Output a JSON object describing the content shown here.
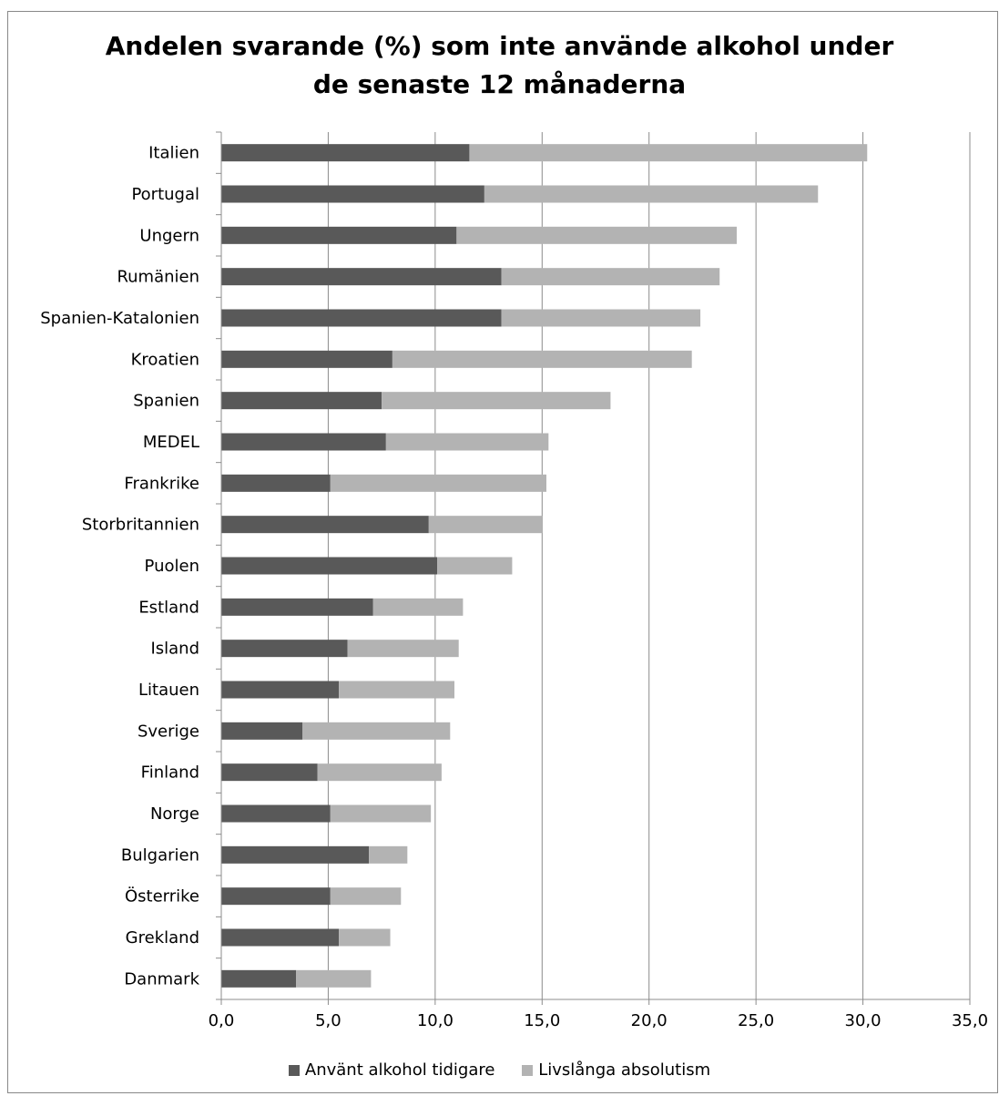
{
  "chart_data": {
    "type": "bar",
    "orientation": "horizontal",
    "stacked": true,
    "title": "Andelen svarande (%) som inte använde alkohol under de senaste 12 månaderna",
    "title_lines": [
      "Andelen svarande (%) som inte använde alkohol under",
      "de senaste 12 månaderna"
    ],
    "categories": [
      "Italien",
      "Portugal",
      "Ungern",
      "Rumänien",
      "Spanien-Katalonien",
      "Kroatien",
      "Spanien",
      "MEDEL",
      "Frankrike",
      "Storbritannien",
      "Puolen",
      "Estland",
      "Island",
      "Litauen",
      "Sverige",
      "Finland",
      "Norge",
      "Bulgarien",
      "Österrike",
      "Grekland",
      "Danmark"
    ],
    "series": [
      {
        "name": "Använt alkohol tidigare",
        "color": "#595959",
        "values": [
          11.6,
          12.3,
          11.0,
          13.1,
          13.1,
          8.0,
          7.5,
          7.7,
          5.1,
          9.7,
          10.1,
          7.1,
          5.9,
          5.5,
          3.8,
          4.5,
          5.1,
          6.9,
          5.1,
          5.5,
          3.5
        ]
      },
      {
        "name": "Livslånga absolutism",
        "color": "#b3b3b3",
        "values": [
          18.6,
          15.6,
          13.1,
          10.2,
          9.3,
          14.0,
          10.7,
          7.6,
          10.1,
          5.3,
          3.5,
          4.2,
          5.2,
          5.4,
          6.9,
          5.8,
          4.7,
          1.8,
          3.3,
          2.4,
          3.5
        ]
      }
    ],
    "xlim": [
      0,
      35
    ],
    "x_ticks": [
      0,
      5,
      10,
      15,
      20,
      25,
      30,
      35
    ],
    "x_tick_labels": [
      "0,0",
      "5,0",
      "10,0",
      "15,0",
      "20,0",
      "25,0",
      "30,0",
      "35,0"
    ],
    "xlabel": "",
    "ylabel": "",
    "grid": "vertical",
    "legend_position": "bottom"
  }
}
